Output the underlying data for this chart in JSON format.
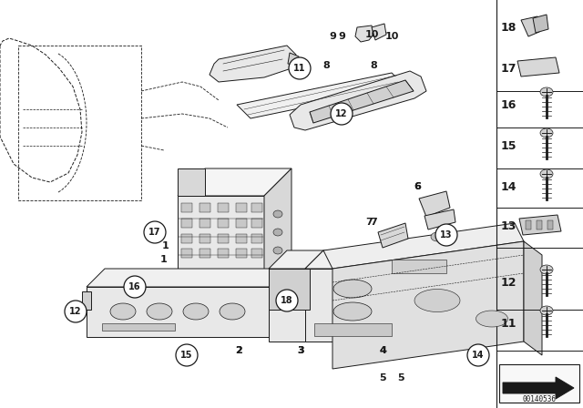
{
  "bg_color": "#ffffff",
  "fig_width": 6.4,
  "fig_height": 4.48,
  "dpi": 100,
  "watermark": "00140536",
  "line_color": "#1a1a1a",
  "lw": 0.7
}
